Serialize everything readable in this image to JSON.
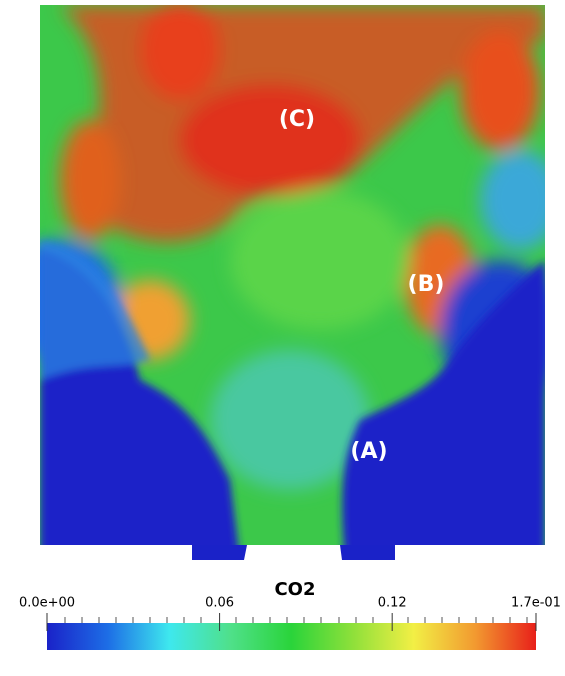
{
  "chart_data": {
    "type": "contour",
    "title": "CO2",
    "annotations": [
      "(C)",
      "(B)",
      "(A)"
    ],
    "colorbar": {
      "lim": [
        0,
        0.17
      ],
      "ticks": [
        {
          "value": 0,
          "label": "0.0e+00"
        },
        0.06,
        0.12,
        {
          "value": 0.17,
          "label": "1.7e-01"
        }
      ],
      "colormap": [
        "#1a22c8",
        "#1d6ee6",
        "#3ee8ee",
        "#4fe08a",
        "#2ad43a",
        "#8ee03a",
        "#f2ef45",
        "#f29a30",
        "#e8201a"
      ]
    }
  }
}
